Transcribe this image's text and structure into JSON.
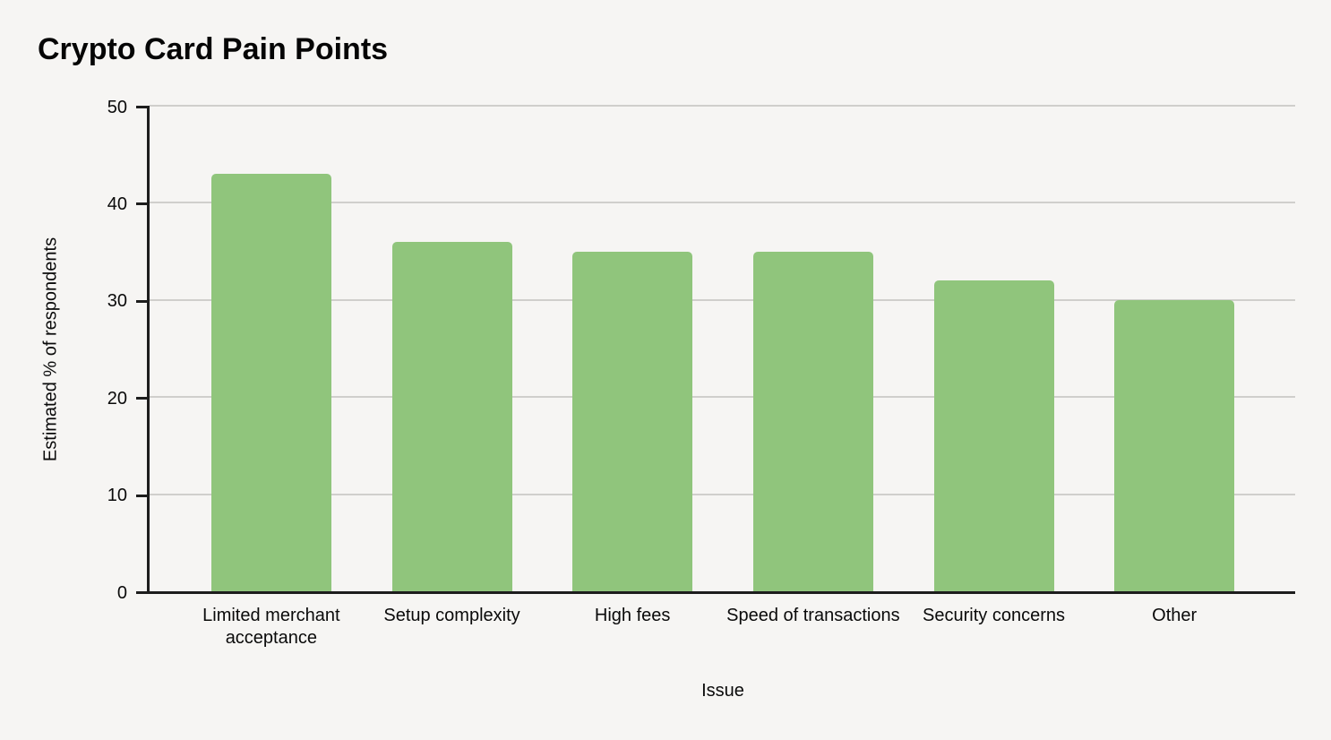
{
  "page_background": "#f6f5f3",
  "chart_data": {
    "type": "bar",
    "title": "Crypto Card Pain Points",
    "xlabel": "Issue",
    "ylabel": "Estimated % of respondents",
    "categories": [
      "Limited merchant acceptance",
      "Setup complexity",
      "High fees",
      "Speed of transactions",
      "Security concerns",
      "Other"
    ],
    "values": [
      43,
      36,
      35,
      35,
      32,
      30
    ],
    "ylim": [
      0,
      50
    ],
    "y_ticks": [
      0,
      10,
      20,
      30,
      40,
      50
    ],
    "grid": true,
    "legend": false,
    "bar_color": "#90c57c",
    "gridline_color": "#d0cfcc",
    "axis_color": "#1d1d1d",
    "text_color": "#0a0a0a"
  }
}
